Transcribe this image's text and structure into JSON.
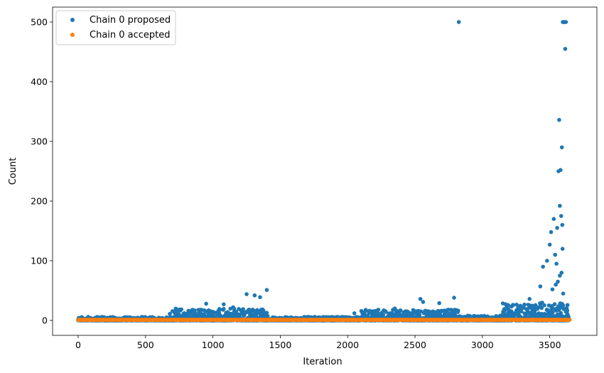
{
  "chart_data": {
    "type": "scatter",
    "xlabel": "Iteration",
    "ylabel": "Count",
    "xlim": [
      -190,
      3850
    ],
    "ylim": [
      -25,
      525
    ],
    "xticks": [
      0,
      500,
      1000,
      1500,
      2000,
      2500,
      3000,
      3500
    ],
    "yticks": [
      0,
      100,
      200,
      300,
      400,
      500
    ],
    "legend_position": "top-left",
    "series": [
      {
        "name": "Chain 0 proposed",
        "color": "#1f77b4",
        "segments": [
          {
            "x_start": 0,
            "x_end": 700,
            "y_max": 6
          },
          {
            "x_start": 700,
            "x_end": 1410,
            "y_max": 20
          },
          {
            "x_start": 1420,
            "x_end": 2100,
            "y_max": 6
          },
          {
            "x_start": 2100,
            "x_end": 2820,
            "y_max": 18
          },
          {
            "x_start": 2830,
            "x_end": 3150,
            "y_max": 8
          },
          {
            "x_start": 3150,
            "x_end": 3640,
            "y_max": 30
          }
        ],
        "points": [
          {
            "x": 680,
            "y": 11
          },
          {
            "x": 950,
            "y": 28
          },
          {
            "x": 1080,
            "y": 27
          },
          {
            "x": 1150,
            "y": 22
          },
          {
            "x": 1250,
            "y": 44
          },
          {
            "x": 1310,
            "y": 42
          },
          {
            "x": 1350,
            "y": 39
          },
          {
            "x": 1400,
            "y": 51
          },
          {
            "x": 2050,
            "y": 12
          },
          {
            "x": 2350,
            "y": 20
          },
          {
            "x": 2540,
            "y": 36
          },
          {
            "x": 2560,
            "y": 31
          },
          {
            "x": 2680,
            "y": 29
          },
          {
            "x": 2790,
            "y": 38
          },
          {
            "x": 2825,
            "y": 500
          },
          {
            "x": 3350,
            "y": 36
          },
          {
            "x": 3430,
            "y": 57
          },
          {
            "x": 3450,
            "y": 90
          },
          {
            "x": 3480,
            "y": 100
          },
          {
            "x": 3500,
            "y": 127
          },
          {
            "x": 3510,
            "y": 148
          },
          {
            "x": 3530,
            "y": 170
          },
          {
            "x": 3540,
            "y": 110
          },
          {
            "x": 3550,
            "y": 95
          },
          {
            "x": 3555,
            "y": 155
          },
          {
            "x": 3565,
            "y": 250
          },
          {
            "x": 3570,
            "y": 336
          },
          {
            "x": 3575,
            "y": 192
          },
          {
            "x": 3580,
            "y": 252
          },
          {
            "x": 3585,
            "y": 175
          },
          {
            "x": 3590,
            "y": 290
          },
          {
            "x": 3593,
            "y": 160
          },
          {
            "x": 3597,
            "y": 500
          },
          {
            "x": 3600,
            "y": 500
          },
          {
            "x": 3605,
            "y": 500
          },
          {
            "x": 3610,
            "y": 500
          },
          {
            "x": 3615,
            "y": 455
          },
          {
            "x": 3620,
            "y": 500
          },
          {
            "x": 3595,
            "y": 120
          },
          {
            "x": 3588,
            "y": 80
          },
          {
            "x": 3575,
            "y": 75
          },
          {
            "x": 3560,
            "y": 65
          },
          {
            "x": 3545,
            "y": 60
          },
          {
            "x": 3520,
            "y": 52
          },
          {
            "x": 3600,
            "y": 45
          }
        ]
      },
      {
        "name": "Chain 0 accepted",
        "color": "#ff7f0e",
        "x_start": 0,
        "x_end": 3650,
        "y": 1
      }
    ]
  }
}
